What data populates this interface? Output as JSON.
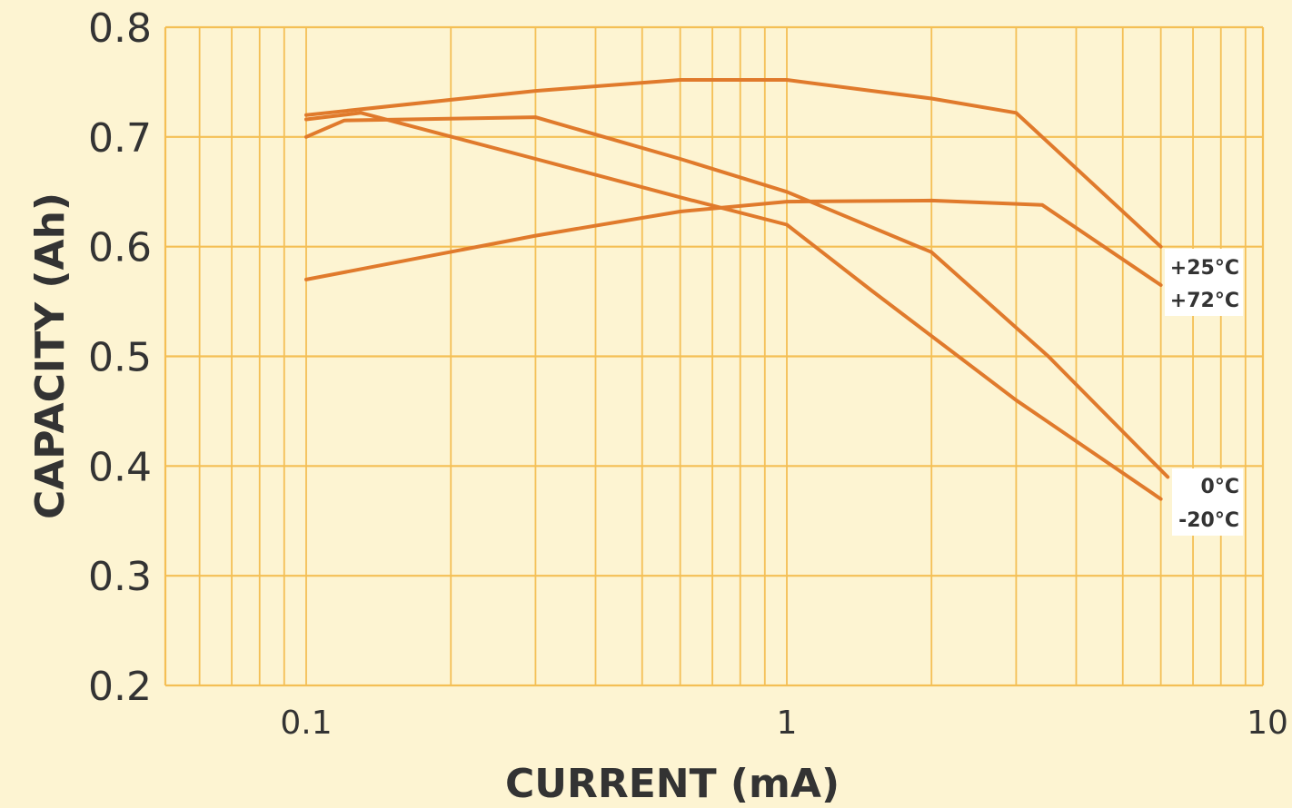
{
  "chart_data": {
    "type": "line",
    "title": "",
    "xlabel": "CURRENT (mA)",
    "ylabel": "CAPACITY (Ah)",
    "xscale": "log",
    "xlim": [
      0.06,
      10
    ],
    "ylim": [
      0.2,
      0.8
    ],
    "grid": true,
    "x_tick_labels": [
      "0.1",
      "1",
      "10"
    ],
    "y_tick_labels": [
      "0.2",
      "0.3",
      "0.4",
      "0.5",
      "0.6",
      "0.7",
      "0.8"
    ],
    "series": [
      {
        "name": "+25°C",
        "x": [
          0.1,
          0.3,
          0.6,
          1.0,
          2.0,
          3.0,
          6.0
        ],
        "y": [
          0.72,
          0.742,
          0.752,
          0.752,
          0.735,
          0.722,
          0.6
        ]
      },
      {
        "name": "+72°C",
        "x": [
          0.1,
          0.3,
          0.6,
          1.0,
          2.0,
          3.4,
          6.0
        ],
        "y": [
          0.57,
          0.61,
          0.632,
          0.641,
          0.642,
          0.638,
          0.565
        ]
      },
      {
        "name": "0°C",
        "x": [
          0.1,
          0.12,
          0.3,
          0.6,
          1.0,
          2.0,
          3.5,
          6.2
        ],
        "y": [
          0.7,
          0.715,
          0.718,
          0.68,
          0.65,
          0.595,
          0.5,
          0.39
        ]
      },
      {
        "name": "-20°C",
        "x": [
          0.1,
          0.13,
          0.3,
          0.6,
          1.0,
          1.5,
          3.0,
          6.0
        ],
        "y": [
          0.716,
          0.722,
          0.68,
          0.645,
          0.62,
          0.56,
          0.46,
          0.37
        ]
      }
    ],
    "colors": {
      "line": "#e07a2c",
      "grid": "#f4bf55",
      "background": "#fdf4d2"
    }
  }
}
